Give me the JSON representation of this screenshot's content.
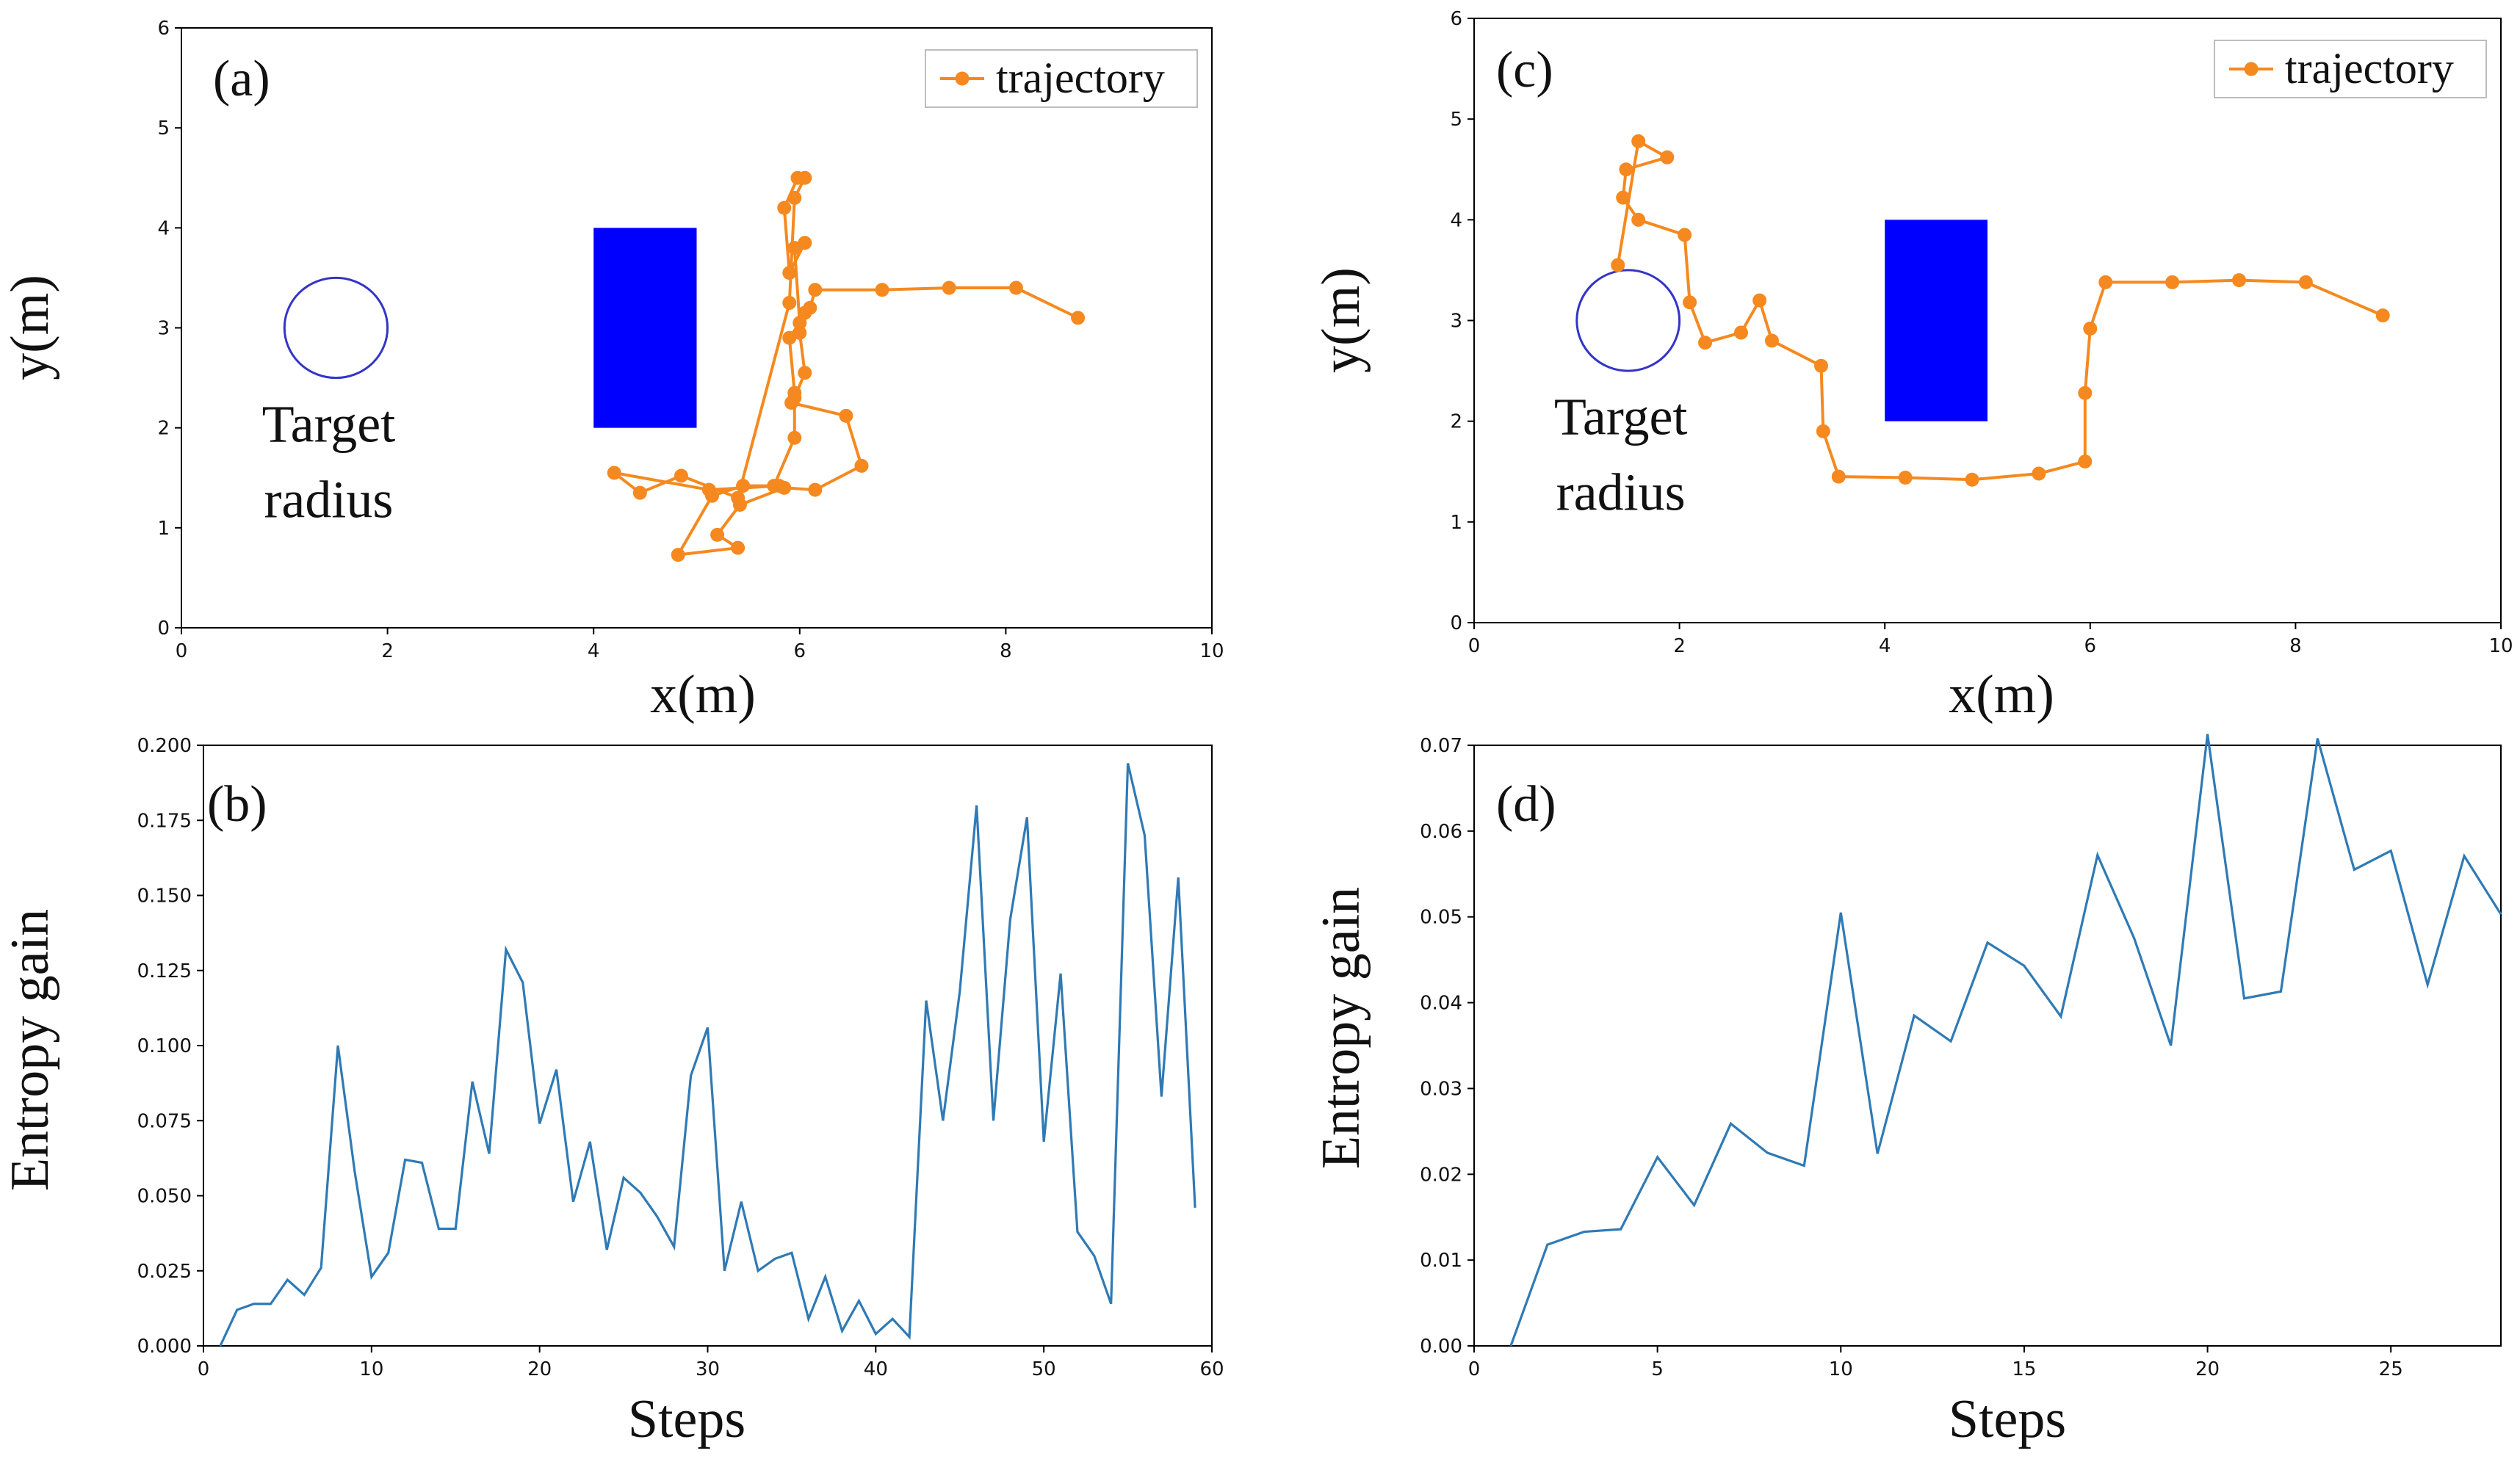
{
  "chart_data": [
    {
      "id": "a",
      "type": "scatter",
      "panel_label": "(a)",
      "xlabel": "x(m)",
      "ylabel": "y(m)",
      "xlim": [
        0,
        10
      ],
      "ylim": [
        0,
        6
      ],
      "xticks": [
        0,
        2,
        4,
        6,
        8,
        10
      ],
      "yticks": [
        0,
        1,
        2,
        3,
        4,
        5,
        6
      ],
      "legend": {
        "label": "trajectory",
        "position": "top-right"
      },
      "target": {
        "cx": 1.5,
        "cy": 3.0,
        "r": 0.5,
        "label_lines": [
          "Target",
          "radius"
        ]
      },
      "obstacle": {
        "x0": 4.0,
        "y0": 2.0,
        "x1": 5.0,
        "y1": 4.0,
        "color": "#0000ff"
      },
      "colors": {
        "trajectory": "#f5891f",
        "circle": "#3434c8"
      },
      "trajectory": [
        [
          8.7,
          3.1
        ],
        [
          8.1,
          3.4
        ],
        [
          7.45,
          3.4
        ],
        [
          6.8,
          3.38
        ],
        [
          6.15,
          3.38
        ],
        [
          6.1,
          3.2
        ],
        [
          6.05,
          3.15
        ],
        [
          6.0,
          2.95
        ],
        [
          6.05,
          2.55
        ],
        [
          5.95,
          2.3
        ],
        [
          5.92,
          2.25
        ],
        [
          6.45,
          2.12
        ],
        [
          6.6,
          1.62
        ],
        [
          6.15,
          1.38
        ],
        [
          5.85,
          1.4
        ],
        [
          5.42,
          1.23
        ],
        [
          5.2,
          0.93
        ],
        [
          5.4,
          0.8
        ],
        [
          4.82,
          0.73
        ],
        [
          5.15,
          1.32
        ],
        [
          5.45,
          1.42
        ],
        [
          5.75,
          1.42
        ],
        [
          5.95,
          1.9
        ],
        [
          5.95,
          2.35
        ],
        [
          5.9,
          2.9
        ],
        [
          6.0,
          3.05
        ],
        [
          5.95,
          3.8
        ],
        [
          6.05,
          3.85
        ],
        [
          5.9,
          3.55
        ],
        [
          5.85,
          4.2
        ],
        [
          5.98,
          4.5
        ],
        [
          6.05,
          4.5
        ],
        [
          5.95,
          4.3
        ],
        [
          5.9,
          3.25
        ],
        [
          5.4,
          1.3
        ],
        [
          4.85,
          1.52
        ],
        [
          4.45,
          1.35
        ],
        [
          4.2,
          1.55
        ],
        [
          5.12,
          1.38
        ],
        [
          5.8,
          1.42
        ]
      ]
    },
    {
      "id": "c",
      "type": "scatter",
      "panel_label": "(c)",
      "xlabel": "x(m)",
      "ylabel": "y(m)",
      "xlim": [
        0,
        10
      ],
      "ylim": [
        0,
        6
      ],
      "xticks": [
        0,
        2,
        4,
        6,
        8,
        10
      ],
      "yticks": [
        0,
        1,
        2,
        3,
        4,
        5,
        6
      ],
      "legend": {
        "label": "trajectory",
        "position": "top-right"
      },
      "target": {
        "cx": 1.5,
        "cy": 3.0,
        "r": 0.5,
        "label_lines": [
          "Target",
          "radius"
        ]
      },
      "obstacle": {
        "x0": 4.0,
        "y0": 2.0,
        "x1": 5.0,
        "y1": 4.0,
        "color": "#0000ff"
      },
      "colors": {
        "trajectory": "#f5891f",
        "circle": "#3434c8"
      },
      "trajectory": [
        [
          8.85,
          3.05
        ],
        [
          8.1,
          3.38
        ],
        [
          7.45,
          3.4
        ],
        [
          6.8,
          3.38
        ],
        [
          6.15,
          3.38
        ],
        [
          6.0,
          2.92
        ],
        [
          5.95,
          2.28
        ],
        [
          5.95,
          1.6
        ],
        [
          5.5,
          1.48
        ],
        [
          4.85,
          1.42
        ],
        [
          4.2,
          1.44
        ],
        [
          3.55,
          1.45
        ],
        [
          3.4,
          1.9
        ],
        [
          3.38,
          2.55
        ],
        [
          2.9,
          2.8
        ],
        [
          2.78,
          3.2
        ],
        [
          2.6,
          2.88
        ],
        [
          2.25,
          2.78
        ],
        [
          2.1,
          3.18
        ],
        [
          2.05,
          3.85
        ],
        [
          1.6,
          4.0
        ],
        [
          1.45,
          4.22
        ],
        [
          1.48,
          4.5
        ],
        [
          1.88,
          4.62
        ],
        [
          1.6,
          4.78
        ],
        [
          1.4,
          3.55
        ]
      ]
    },
    {
      "id": "b",
      "type": "line",
      "panel_label": "(b)",
      "xlabel": "Steps",
      "ylabel": "Entropy  gain",
      "xlim": [
        0,
        60
      ],
      "ylim": [
        0,
        0.2
      ],
      "xticks": [
        0,
        10,
        20,
        30,
        40,
        50,
        60
      ],
      "yticks": [
        "0.000",
        "0.025",
        "0.050",
        "0.075",
        "0.100",
        "0.125",
        "0.150",
        "0.175",
        "0.200"
      ],
      "colors": {
        "line": "#2f7ab5"
      },
      "series": [
        {
          "name": "entropy gain",
          "x": [
            1,
            2,
            3,
            4,
            5,
            6,
            7,
            8,
            9,
            10,
            11,
            12,
            13,
            14,
            15,
            16,
            17,
            18,
            19,
            20,
            21,
            22,
            23,
            24,
            25,
            26,
            27,
            28,
            29,
            30,
            31,
            32,
            33,
            34,
            35,
            36,
            37,
            38,
            39,
            40,
            41,
            42,
            43,
            44,
            45,
            46,
            47,
            48,
            49,
            50,
            51,
            52,
            53,
            54,
            55,
            56,
            57,
            58,
            59
          ],
          "values": [
            0.0,
            0.012,
            0.014,
            0.014,
            0.022,
            0.017,
            0.026,
            0.1,
            0.058,
            0.023,
            0.031,
            0.062,
            0.061,
            0.039,
            0.039,
            0.088,
            0.064,
            0.132,
            0.121,
            0.074,
            0.092,
            0.048,
            0.068,
            0.032,
            0.056,
            0.051,
            0.043,
            0.033,
            0.09,
            0.106,
            0.025,
            0.048,
            0.025,
            0.029,
            0.031,
            0.009,
            0.023,
            0.005,
            0.015,
            0.004,
            0.009,
            0.003,
            0.115,
            0.075,
            0.118,
            0.18,
            0.075,
            0.142,
            0.176,
            0.068,
            0.124,
            0.038,
            0.03,
            0.014,
            0.194,
            0.17,
            0.083,
            0.156,
            0.046
          ]
        }
      ]
    },
    {
      "id": "d",
      "type": "line",
      "panel_label": "(d)",
      "xlabel": "Steps",
      "ylabel": "Entropy  gain",
      "xlim": [
        0,
        28
      ],
      "ylim": [
        0,
        0.07
      ],
      "xticks": [
        0,
        5,
        10,
        15,
        20,
        25
      ],
      "yticks": [
        "0.00",
        "0.01",
        "0.02",
        "0.03",
        "0.04",
        "0.05",
        "0.06",
        "0.07"
      ],
      "colors": {
        "line": "#2f7ab5"
      },
      "series": [
        {
          "name": "entropy gain",
          "x": [
            1,
            2,
            3,
            4,
            5,
            6,
            7,
            8,
            9,
            10,
            11,
            12,
            13,
            14,
            15,
            16,
            17,
            18,
            19,
            20,
            21,
            22,
            23,
            24,
            25,
            26,
            27,
            28
          ],
          "values": [
            0.0,
            0.0118,
            0.0133,
            0.0136,
            0.022,
            0.0164,
            0.0259,
            0.0225,
            0.021,
            0.0505,
            0.0224,
            0.0385,
            0.0355,
            0.047,
            0.0443,
            0.0384,
            0.0572,
            0.0475,
            0.035,
            0.0713,
            0.0405,
            0.0413,
            0.0708,
            0.0555,
            0.0577,
            0.0421,
            0.0571,
            0.0503
          ]
        }
      ]
    }
  ]
}
